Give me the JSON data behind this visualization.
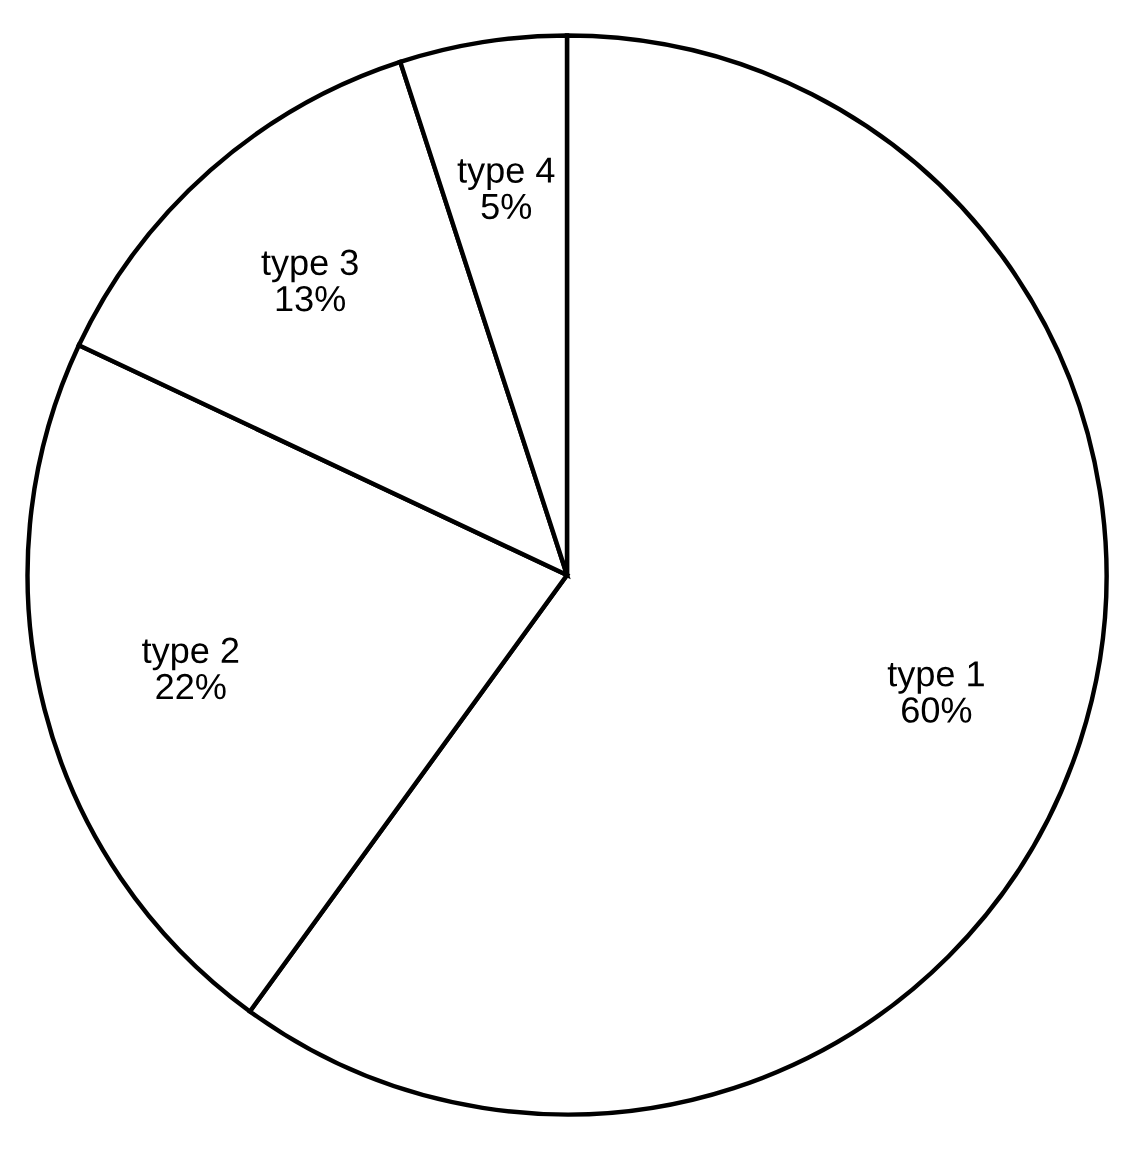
{
  "chart_data": {
    "type": "pie",
    "categories": [
      "type 1",
      "type 2",
      "type 3",
      "type 4"
    ],
    "values": [
      60,
      22,
      13,
      5
    ],
    "value_labels": [
      "60%",
      "22%",
      "13%",
      "5%"
    ],
    "colors": [
      "#ffffff",
      "#ffffff",
      "#ffffff",
      "#ffffff"
    ]
  }
}
